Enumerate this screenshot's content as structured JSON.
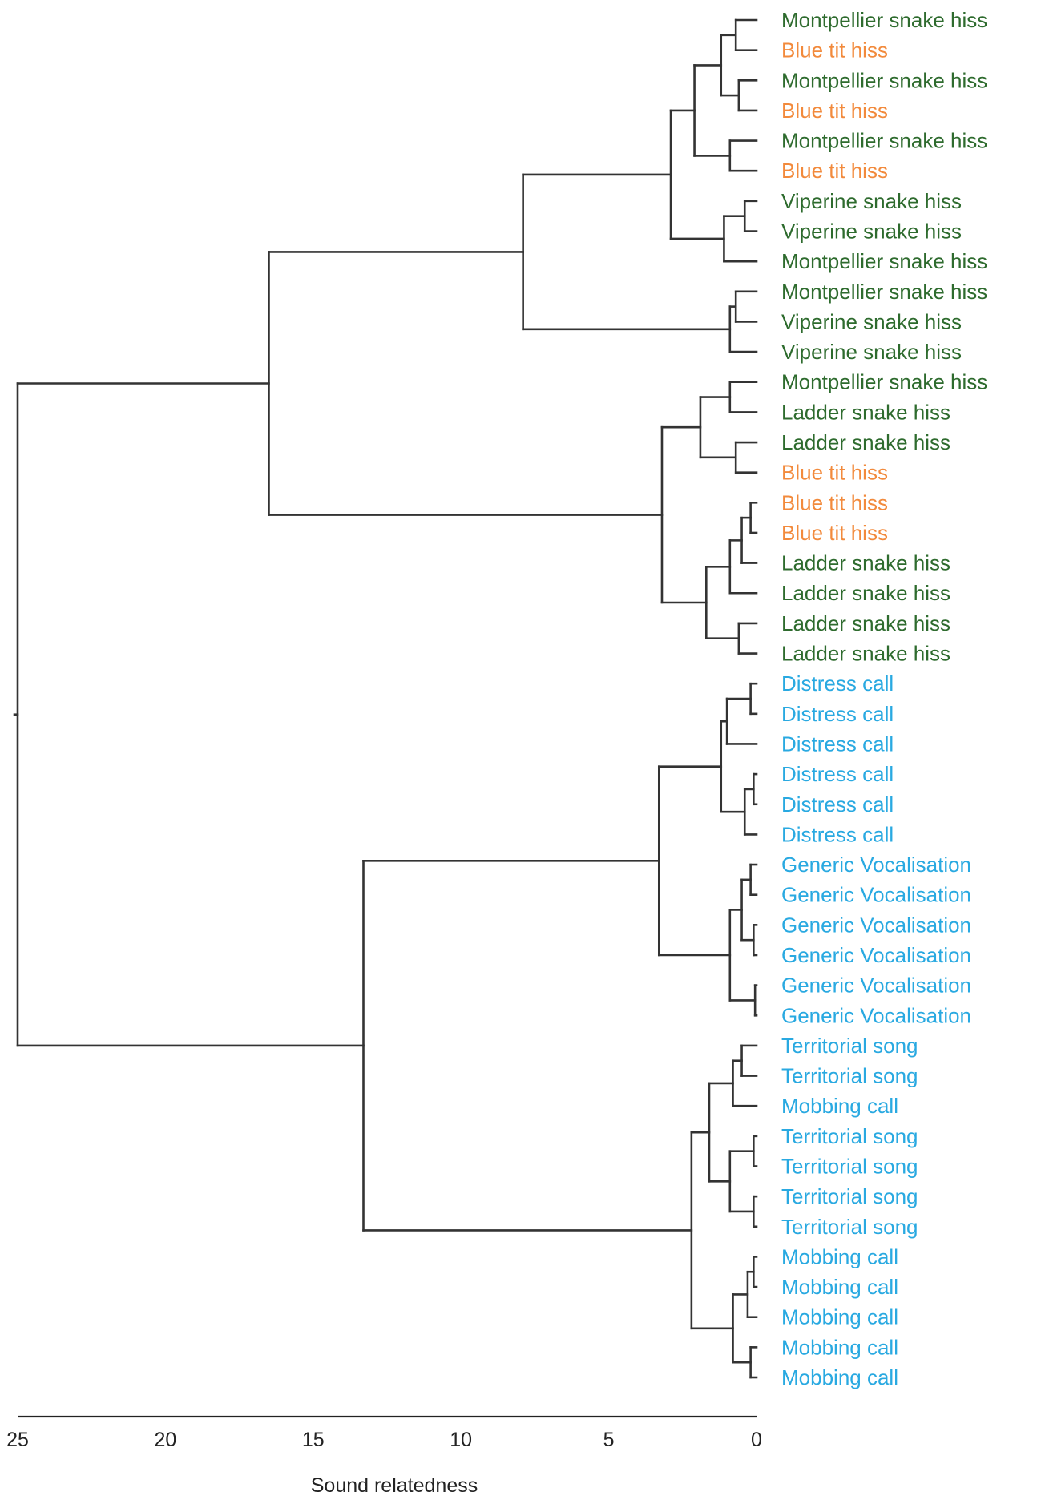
{
  "colors": {
    "snake_hiss": "#2e6b2e",
    "bird_hiss": "#f28a3c",
    "bird_call": "#29a9e1",
    "tree_line": "#333333"
  },
  "axis": {
    "label": "Sound relatedness",
    "min": 0,
    "max": 25,
    "direction": "reversed",
    "ticks": [
      "25",
      "20",
      "15",
      "10",
      "5",
      "0"
    ]
  },
  "leaves": [
    {
      "label": "Montpellier snake hiss",
      "group": "snake_hiss"
    },
    {
      "label": "Blue tit hiss",
      "group": "bird_hiss"
    },
    {
      "label": "Montpellier snake hiss",
      "group": "snake_hiss"
    },
    {
      "label": "Blue tit hiss",
      "group": "bird_hiss"
    },
    {
      "label": "Montpellier snake hiss",
      "group": "snake_hiss"
    },
    {
      "label": "Blue tit hiss",
      "group": "bird_hiss"
    },
    {
      "label": "Viperine snake hiss",
      "group": "snake_hiss"
    },
    {
      "label": "Viperine snake hiss",
      "group": "snake_hiss"
    },
    {
      "label": "Montpellier snake hiss",
      "group": "snake_hiss"
    },
    {
      "label": "Montpellier snake hiss",
      "group": "snake_hiss"
    },
    {
      "label": "Viperine snake hiss",
      "group": "snake_hiss"
    },
    {
      "label": "Viperine snake hiss",
      "group": "snake_hiss"
    },
    {
      "label": "Montpellier snake hiss",
      "group": "snake_hiss"
    },
    {
      "label": "Ladder snake hiss",
      "group": "snake_hiss"
    },
    {
      "label": "Ladder snake hiss",
      "group": "snake_hiss"
    },
    {
      "label": "Blue tit hiss",
      "group": "bird_hiss"
    },
    {
      "label": "Blue tit hiss",
      "group": "bird_hiss"
    },
    {
      "label": "Blue tit hiss",
      "group": "bird_hiss"
    },
    {
      "label": "Ladder snake hiss",
      "group": "snake_hiss"
    },
    {
      "label": "Ladder snake hiss",
      "group": "snake_hiss"
    },
    {
      "label": "Ladder snake hiss",
      "group": "snake_hiss"
    },
    {
      "label": "Ladder snake hiss",
      "group": "snake_hiss"
    },
    {
      "label": "Distress call",
      "group": "bird_call"
    },
    {
      "label": "Distress call",
      "group": "bird_call"
    },
    {
      "label": "Distress call",
      "group": "bird_call"
    },
    {
      "label": "Distress call",
      "group": "bird_call"
    },
    {
      "label": "Distress call",
      "group": "bird_call"
    },
    {
      "label": "Distress call",
      "group": "bird_call"
    },
    {
      "label": "Generic Vocalisation",
      "group": "bird_call"
    },
    {
      "label": "Generic Vocalisation",
      "group": "bird_call"
    },
    {
      "label": "Generic Vocalisation",
      "group": "bird_call"
    },
    {
      "label": "Generic Vocalisation",
      "group": "bird_call"
    },
    {
      "label": "Generic Vocalisation",
      "group": "bird_call"
    },
    {
      "label": "Generic Vocalisation",
      "group": "bird_call"
    },
    {
      "label": "Territorial song",
      "group": "bird_call"
    },
    {
      "label": "Territorial song",
      "group": "bird_call"
    },
    {
      "label": "Mobbing call",
      "group": "bird_call"
    },
    {
      "label": "Territorial song",
      "group": "bird_call"
    },
    {
      "label": "Territorial song",
      "group": "bird_call"
    },
    {
      "label": "Territorial song",
      "group": "bird_call"
    },
    {
      "label": "Territorial song",
      "group": "bird_call"
    },
    {
      "label": "Mobbing call",
      "group": "bird_call"
    },
    {
      "label": "Mobbing call",
      "group": "bird_call"
    },
    {
      "label": "Mobbing call",
      "group": "bird_call"
    },
    {
      "label": "Mobbing call",
      "group": "bird_call"
    },
    {
      "label": "Mobbing call",
      "group": "bird_call"
    }
  ],
  "tree": {
    "h": 25,
    "c": [
      {
        "h": 16.5,
        "c": [
          {
            "h": 7.9,
            "c": [
              {
                "h": 2.9,
                "c": [
                  {
                    "h": 2.1,
                    "c": [
                      {
                        "h": 1.2,
                        "c": [
                          {
                            "h": 0.7,
                            "c": [
                              {
                                "l": 0
                              },
                              {
                                "l": 1
                              }
                            ]
                          },
                          {
                            "h": 0.6,
                            "c": [
                              {
                                "l": 2
                              },
                              {
                                "l": 3
                              }
                            ]
                          }
                        ]
                      },
                      {
                        "h": 0.9,
                        "c": [
                          {
                            "l": 4
                          },
                          {
                            "l": 5
                          }
                        ]
                      }
                    ]
                  },
                  {
                    "h": 1.1,
                    "c": [
                      {
                        "h": 0.4,
                        "c": [
                          {
                            "l": 6
                          },
                          {
                            "l": 7
                          }
                        ]
                      },
                      {
                        "l": 8
                      }
                    ]
                  }
                ]
              },
              {
                "h": 0.9,
                "c": [
                  {
                    "h": 0.7,
                    "c": [
                      {
                        "l": 9
                      },
                      {
                        "l": 10
                      }
                    ]
                  },
                  {
                    "l": 11
                  }
                ]
              }
            ]
          },
          {
            "h": 3.2,
            "c": [
              {
                "h": 1.9,
                "c": [
                  {
                    "h": 0.9,
                    "c": [
                      {
                        "l": 12
                      },
                      {
                        "l": 13
                      }
                    ]
                  },
                  {
                    "h": 0.7,
                    "c": [
                      {
                        "l": 14
                      },
                      {
                        "l": 15
                      }
                    ]
                  }
                ]
              },
              {
                "h": 1.7,
                "c": [
                  {
                    "h": 0.9,
                    "c": [
                      {
                        "h": 0.5,
                        "c": [
                          {
                            "h": 0.2,
                            "c": [
                              {
                                "l": 16
                              },
                              {
                                "l": 17
                              }
                            ]
                          },
                          {
                            "l": 18
                          }
                        ]
                      },
                      {
                        "l": 19
                      }
                    ]
                  },
                  {
                    "h": 0.6,
                    "c": [
                      {
                        "l": 20
                      },
                      {
                        "l": 21
                      }
                    ]
                  }
                ]
              }
            ]
          }
        ]
      },
      {
        "h": 13.3,
        "c": [
          {
            "h": 3.3,
            "c": [
              {
                "h": 1.2,
                "c": [
                  {
                    "h": 1.0,
                    "c": [
                      {
                        "h": 0.2,
                        "c": [
                          {
                            "l": 22
                          },
                          {
                            "l": 23
                          }
                        ]
                      },
                      {
                        "l": 24
                      }
                    ]
                  },
                  {
                    "h": 0.4,
                    "c": [
                      {
                        "h": 0.1,
                        "c": [
                          {
                            "l": 25
                          },
                          {
                            "l": 26
                          }
                        ]
                      },
                      {
                        "l": 27
                      }
                    ]
                  }
                ]
              },
              {
                "h": 0.9,
                "c": [
                  {
                    "h": 0.5,
                    "c": [
                      {
                        "h": 0.2,
                        "c": [
                          {
                            "l": 28
                          },
                          {
                            "l": 29
                          }
                        ]
                      },
                      {
                        "h": 0.1,
                        "c": [
                          {
                            "l": 30
                          },
                          {
                            "l": 31
                          }
                        ]
                      }
                    ]
                  },
                  {
                    "h": 0.05,
                    "c": [
                      {
                        "l": 32
                      },
                      {
                        "l": 33
                      }
                    ]
                  }
                ]
              }
            ]
          },
          {
            "h": 2.2,
            "c": [
              {
                "h": 1.6,
                "c": [
                  {
                    "h": 0.8,
                    "c": [
                      {
                        "h": 0.5,
                        "c": [
                          {
                            "l": 34
                          },
                          {
                            "l": 35
                          }
                        ]
                      },
                      {
                        "l": 36
                      }
                    ]
                  },
                  {
                    "h": 0.9,
                    "c": [
                      {
                        "h": 0.1,
                        "c": [
                          {
                            "l": 37
                          },
                          {
                            "l": 38
                          }
                        ]
                      },
                      {
                        "h": 0.1,
                        "c": [
                          {
                            "l": 39
                          },
                          {
                            "l": 40
                          }
                        ]
                      }
                    ]
                  }
                ]
              },
              {
                "h": 0.8,
                "c": [
                  {
                    "h": 0.3,
                    "c": [
                      {
                        "h": 0.1,
                        "c": [
                          {
                            "l": 41
                          },
                          {
                            "l": 42
                          }
                        ]
                      },
                      {
                        "l": 43
                      }
                    ]
                  },
                  {
                    "h": 0.2,
                    "c": [
                      {
                        "l": 44
                      },
                      {
                        "l": 45
                      }
                    ]
                  }
                ]
              }
            ]
          }
        ]
      }
    ]
  }
}
